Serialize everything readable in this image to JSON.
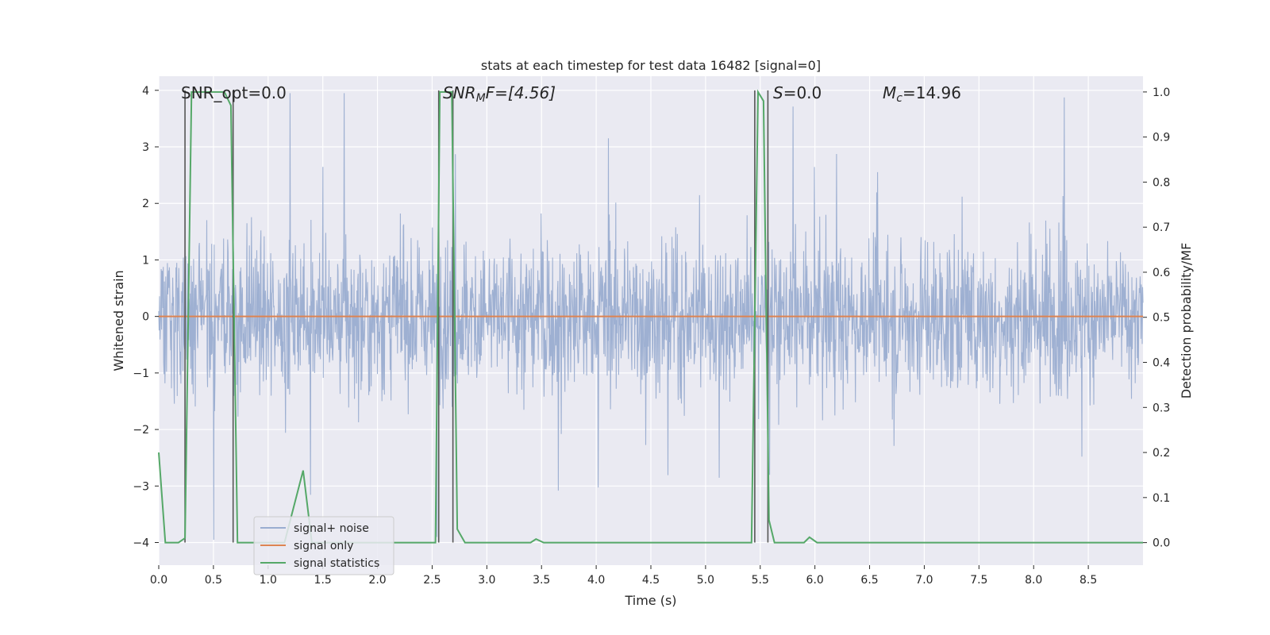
{
  "chart_data": {
    "type": "line",
    "title": "stats at each timestep for test data 16482 [signal=0]",
    "xlabel": "Time (s)",
    "ylabel_left": "Whitened strain",
    "ylabel_right": "Detection probability/MF",
    "xlim": [
      0.0,
      9.0
    ],
    "ylim_left": [
      -4.4,
      4.25
    ],
    "ylim_right": [
      -0.05,
      1.035
    ],
    "x_ticks": [
      0.0,
      0.5,
      1.0,
      1.5,
      2.0,
      2.5,
      3.0,
      3.5,
      4.0,
      4.5,
      5.0,
      5.5,
      6.0,
      6.5,
      7.0,
      7.5,
      8.0,
      8.5
    ],
    "x_tick_labels": [
      "0.0",
      "0.5",
      "1.0",
      "1.5",
      "2.0",
      "2.5",
      "3.0",
      "3.5",
      "4.0",
      "4.5",
      "5.0",
      "5.5",
      "6.0",
      "6.5",
      "7.0",
      "7.5",
      "8.0",
      "8.5"
    ],
    "y_ticks_left": [
      -4,
      -3,
      -2,
      -1,
      0,
      1,
      2,
      3,
      4
    ],
    "y_tick_labels_left": [
      "−4",
      "−3",
      "−2",
      "−1",
      "0",
      "1",
      "2",
      "3",
      "4"
    ],
    "y_ticks_right": [
      0.0,
      0.1,
      0.2,
      0.3,
      0.4,
      0.5,
      0.6,
      0.7,
      0.8,
      0.9,
      1.0
    ],
    "y_tick_labels_right": [
      "0.0",
      "0.1",
      "0.2",
      "0.3",
      "0.4",
      "0.5",
      "0.6",
      "0.7",
      "0.8",
      "0.9",
      "1.0"
    ],
    "grid": true,
    "legend_position": "lower-left",
    "annotations": {
      "snr_opt": "SNR_opt=0.0",
      "snr_mf_prefix": "SNR",
      "snr_mf_sub": "M",
      "snr_mf_suffix": "F=[4.56]",
      "s_prefix": "S",
      "s_suffix": "=0.0",
      "mc_prefix": "M",
      "mc_sub": "c",
      "mc_suffix": "=14.96"
    },
    "colors": {
      "noise": "#9aadd0",
      "signal": "#dd8452",
      "stats": "#55a868",
      "vline": "#555555",
      "panel_bg": "#eaeaf2",
      "grid": "#ffffff"
    },
    "vertical_lines_x": [
      0.24,
      0.68,
      2.56,
      2.69,
      5.45,
      5.57
    ],
    "series": [
      {
        "name": "signal+ noise",
        "axis": "left",
        "description": "dense whitened strain trace; typical envelope about ±1.6 with spikes to ±3.9"
      },
      {
        "name": "signal only",
        "axis": "left",
        "values_constant": 0.0
      },
      {
        "name": "signal statistics",
        "axis": "right",
        "x": [
          0.0,
          0.06,
          0.18,
          0.24,
          0.3,
          0.36,
          0.6,
          0.66,
          0.72,
          0.76,
          0.9,
          1.15,
          1.32,
          1.4,
          1.5,
          2.4,
          2.53,
          2.57,
          2.63,
          2.68,
          2.73,
          2.8,
          2.9,
          3.2,
          3.4,
          3.45,
          3.52,
          3.6,
          5.0,
          5.42,
          5.48,
          5.53,
          5.58,
          5.63,
          5.9,
          5.95,
          6.02,
          9.0
        ],
        "values": [
          0.2,
          0.0,
          0.0,
          0.01,
          1.0,
          1.0,
          1.0,
          0.97,
          0.0,
          0.0,
          0.0,
          0.0,
          0.16,
          0.0,
          0.0,
          0.0,
          0.0,
          1.0,
          1.0,
          1.0,
          0.03,
          0.0,
          0.0,
          0.0,
          0.0,
          0.008,
          0.0,
          0.0,
          0.0,
          0.0,
          1.0,
          0.98,
          0.05,
          0.0,
          0.0,
          0.012,
          0.0,
          0.0
        ]
      }
    ]
  }
}
